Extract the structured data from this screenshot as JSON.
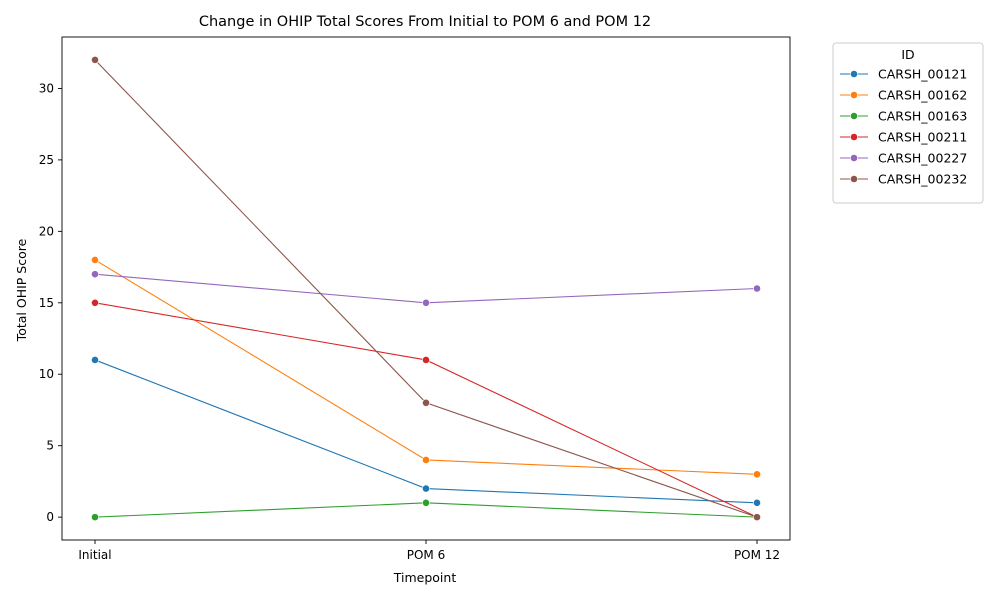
{
  "chart_data": {
    "type": "line",
    "title": "Change in OHIP Total Scores From Initial to POM 6 and POM 12",
    "xlabel": "Timepoint",
    "ylabel": "Total OHIP Score",
    "categories": [
      "Initial",
      "POM 6",
      "POM 12"
    ],
    "ylim": [
      -1.6,
      33.6
    ],
    "yticks": [
      0,
      5,
      10,
      15,
      20,
      25,
      30
    ],
    "grid": false,
    "legend": {
      "title": "ID",
      "placement": "outside-top-right"
    },
    "series": [
      {
        "name": "CARSH_00121",
        "color": "#1f77b4",
        "values": [
          11,
          2,
          1
        ]
      },
      {
        "name": "CARSH_00162",
        "color": "#ff7f0e",
        "values": [
          18,
          4,
          3
        ]
      },
      {
        "name": "CARSH_00163",
        "color": "#2ca02c",
        "values": [
          0,
          1,
          0
        ]
      },
      {
        "name": "CARSH_00211",
        "color": "#d62728",
        "values": [
          15,
          11,
          0
        ]
      },
      {
        "name": "CARSH_00227",
        "color": "#9467bd",
        "values": [
          17,
          15,
          16
        ]
      },
      {
        "name": "CARSH_00232",
        "color": "#8c564b",
        "values": [
          32,
          8,
          0
        ]
      }
    ]
  }
}
